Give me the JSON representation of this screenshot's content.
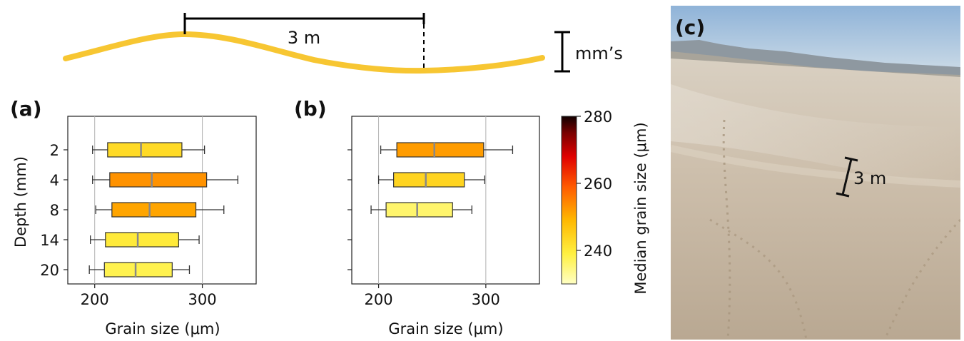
{
  "schematic": {
    "wavelength_label": "3 m",
    "amplitude_label": "mm’s",
    "ripple_color": "#F7C632"
  },
  "chart_data": [
    {
      "type": "box",
      "panel_label": "(a)",
      "xlabel": "Grain size (μm)",
      "ylabel": "Depth (mm)",
      "xlim": [
        175,
        350
      ],
      "x_ticks": [
        200,
        300
      ],
      "grid": "vertical",
      "categories": [
        "2",
        "4",
        "8",
        "14",
        "20"
      ],
      "boxes": [
        {
          "depth": "2",
          "whisker_low": 198,
          "q1": 212,
          "median": 243,
          "q3": 281,
          "whisker_high": 302
        },
        {
          "depth": "4",
          "whisker_low": 198,
          "q1": 214,
          "median": 253,
          "q3": 304,
          "whisker_high": 333
        },
        {
          "depth": "8",
          "whisker_low": 201,
          "q1": 216,
          "median": 251,
          "q3": 294,
          "whisker_high": 320
        },
        {
          "depth": "14",
          "whisker_low": 196,
          "q1": 210,
          "median": 240,
          "q3": 278,
          "whisker_high": 297
        },
        {
          "depth": "20",
          "whisker_low": 195,
          "q1": 209,
          "median": 238,
          "q3": 272,
          "whisker_high": 288
        }
      ]
    },
    {
      "type": "box",
      "panel_label": "(b)",
      "xlabel": "Grain size (μm)",
      "xlim": [
        175,
        350
      ],
      "x_ticks": [
        200,
        300
      ],
      "grid": "vertical",
      "boxes": [
        {
          "whisker_low": 202,
          "q1": 217,
          "median": 252,
          "q3": 298,
          "whisker_high": 325
        },
        {
          "whisker_low": 200,
          "q1": 214,
          "median": 244,
          "q3": 280,
          "whisker_high": 299
        },
        {
          "whisker_low": 193,
          "q1": 207,
          "median": 236,
          "q3": 269,
          "whisker_high": 287
        }
      ]
    }
  ],
  "colorbar": {
    "label": "Median grain size (μm)",
    "range": [
      230,
      280
    ],
    "ticks": [
      "240",
      "260",
      "280"
    ],
    "tick_values": [
      240,
      260,
      280
    ],
    "colormap": "hot_r"
  },
  "photo": {
    "panel_label": "(c)",
    "scale_label": "3 m"
  }
}
